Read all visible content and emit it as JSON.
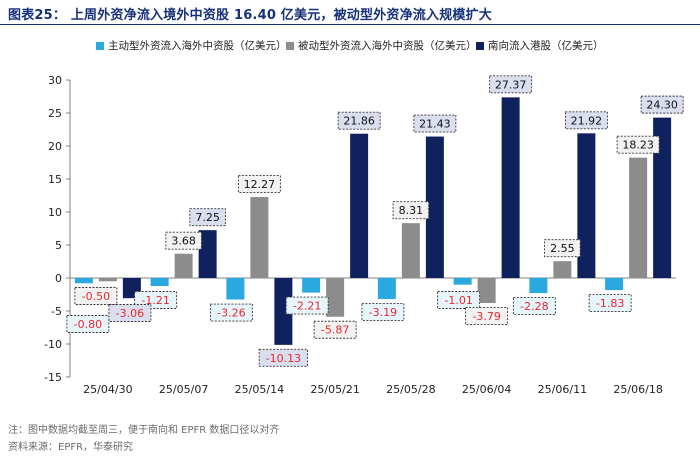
{
  "title": "图表25：  上周外资净流入境外中资股 16.40 亿美元，被动型外资净流入规模扩大",
  "chart_data": {
    "type": "bar",
    "categories": [
      "25/04/30",
      "25/05/07",
      "25/05/14",
      "25/05/21",
      "25/05/28",
      "25/06/04",
      "25/06/11",
      "25/06/18"
    ],
    "series": [
      {
        "name": "主动型外资流入海外中资股（亿美元）",
        "color": "#2aa9e0",
        "values": [
          -0.8,
          -1.21,
          -3.26,
          -2.21,
          -3.19,
          -1.01,
          -2.28,
          -1.83
        ]
      },
      {
        "name": "被动型外资流入海外中资股（亿美元）",
        "color": "#8c8c8c",
        "values": [
          -0.5,
          3.68,
          12.27,
          -5.87,
          8.31,
          -3.79,
          2.55,
          18.23
        ]
      },
      {
        "name": "南向流入港股（亿美元）",
        "color": "#10225e",
        "values": [
          -3.06,
          7.25,
          -10.13,
          21.86,
          21.43,
          27.37,
          21.92,
          24.3
        ]
      }
    ],
    "labels": [
      [
        "-0.80",
        "-0.50",
        "-3.06"
      ],
      [
        "-1.21",
        "3.68",
        "7.25"
      ],
      [
        "-3.26",
        "12.27",
        "-10.13"
      ],
      [
        "-2.21",
        "-5.87",
        "21.86"
      ],
      [
        "-3.19",
        "8.31",
        "21.43"
      ],
      [
        "-1.01",
        "-3.79",
        "27.37"
      ],
      [
        "-2.28",
        "2.55",
        "21.92"
      ],
      [
        "-1.83",
        "18.23",
        "24.30"
      ]
    ],
    "ylim": [
      -15,
      30
    ],
    "yticks": [
      -15,
      -10,
      -5,
      0,
      5,
      10,
      15,
      20,
      25,
      30
    ],
    "ytick_labels": [
      "-15",
      "-10",
      "-5",
      "0",
      "5",
      "10",
      "15",
      "20",
      "25",
      "30"
    ],
    "legend_position": "top",
    "grid": false
  },
  "notes": {
    "line1": "注：图中数据均截至周三，便于南向和 EPFR 数据口径以对齐",
    "line2": "资料来源：EPFR，华泰研究"
  }
}
